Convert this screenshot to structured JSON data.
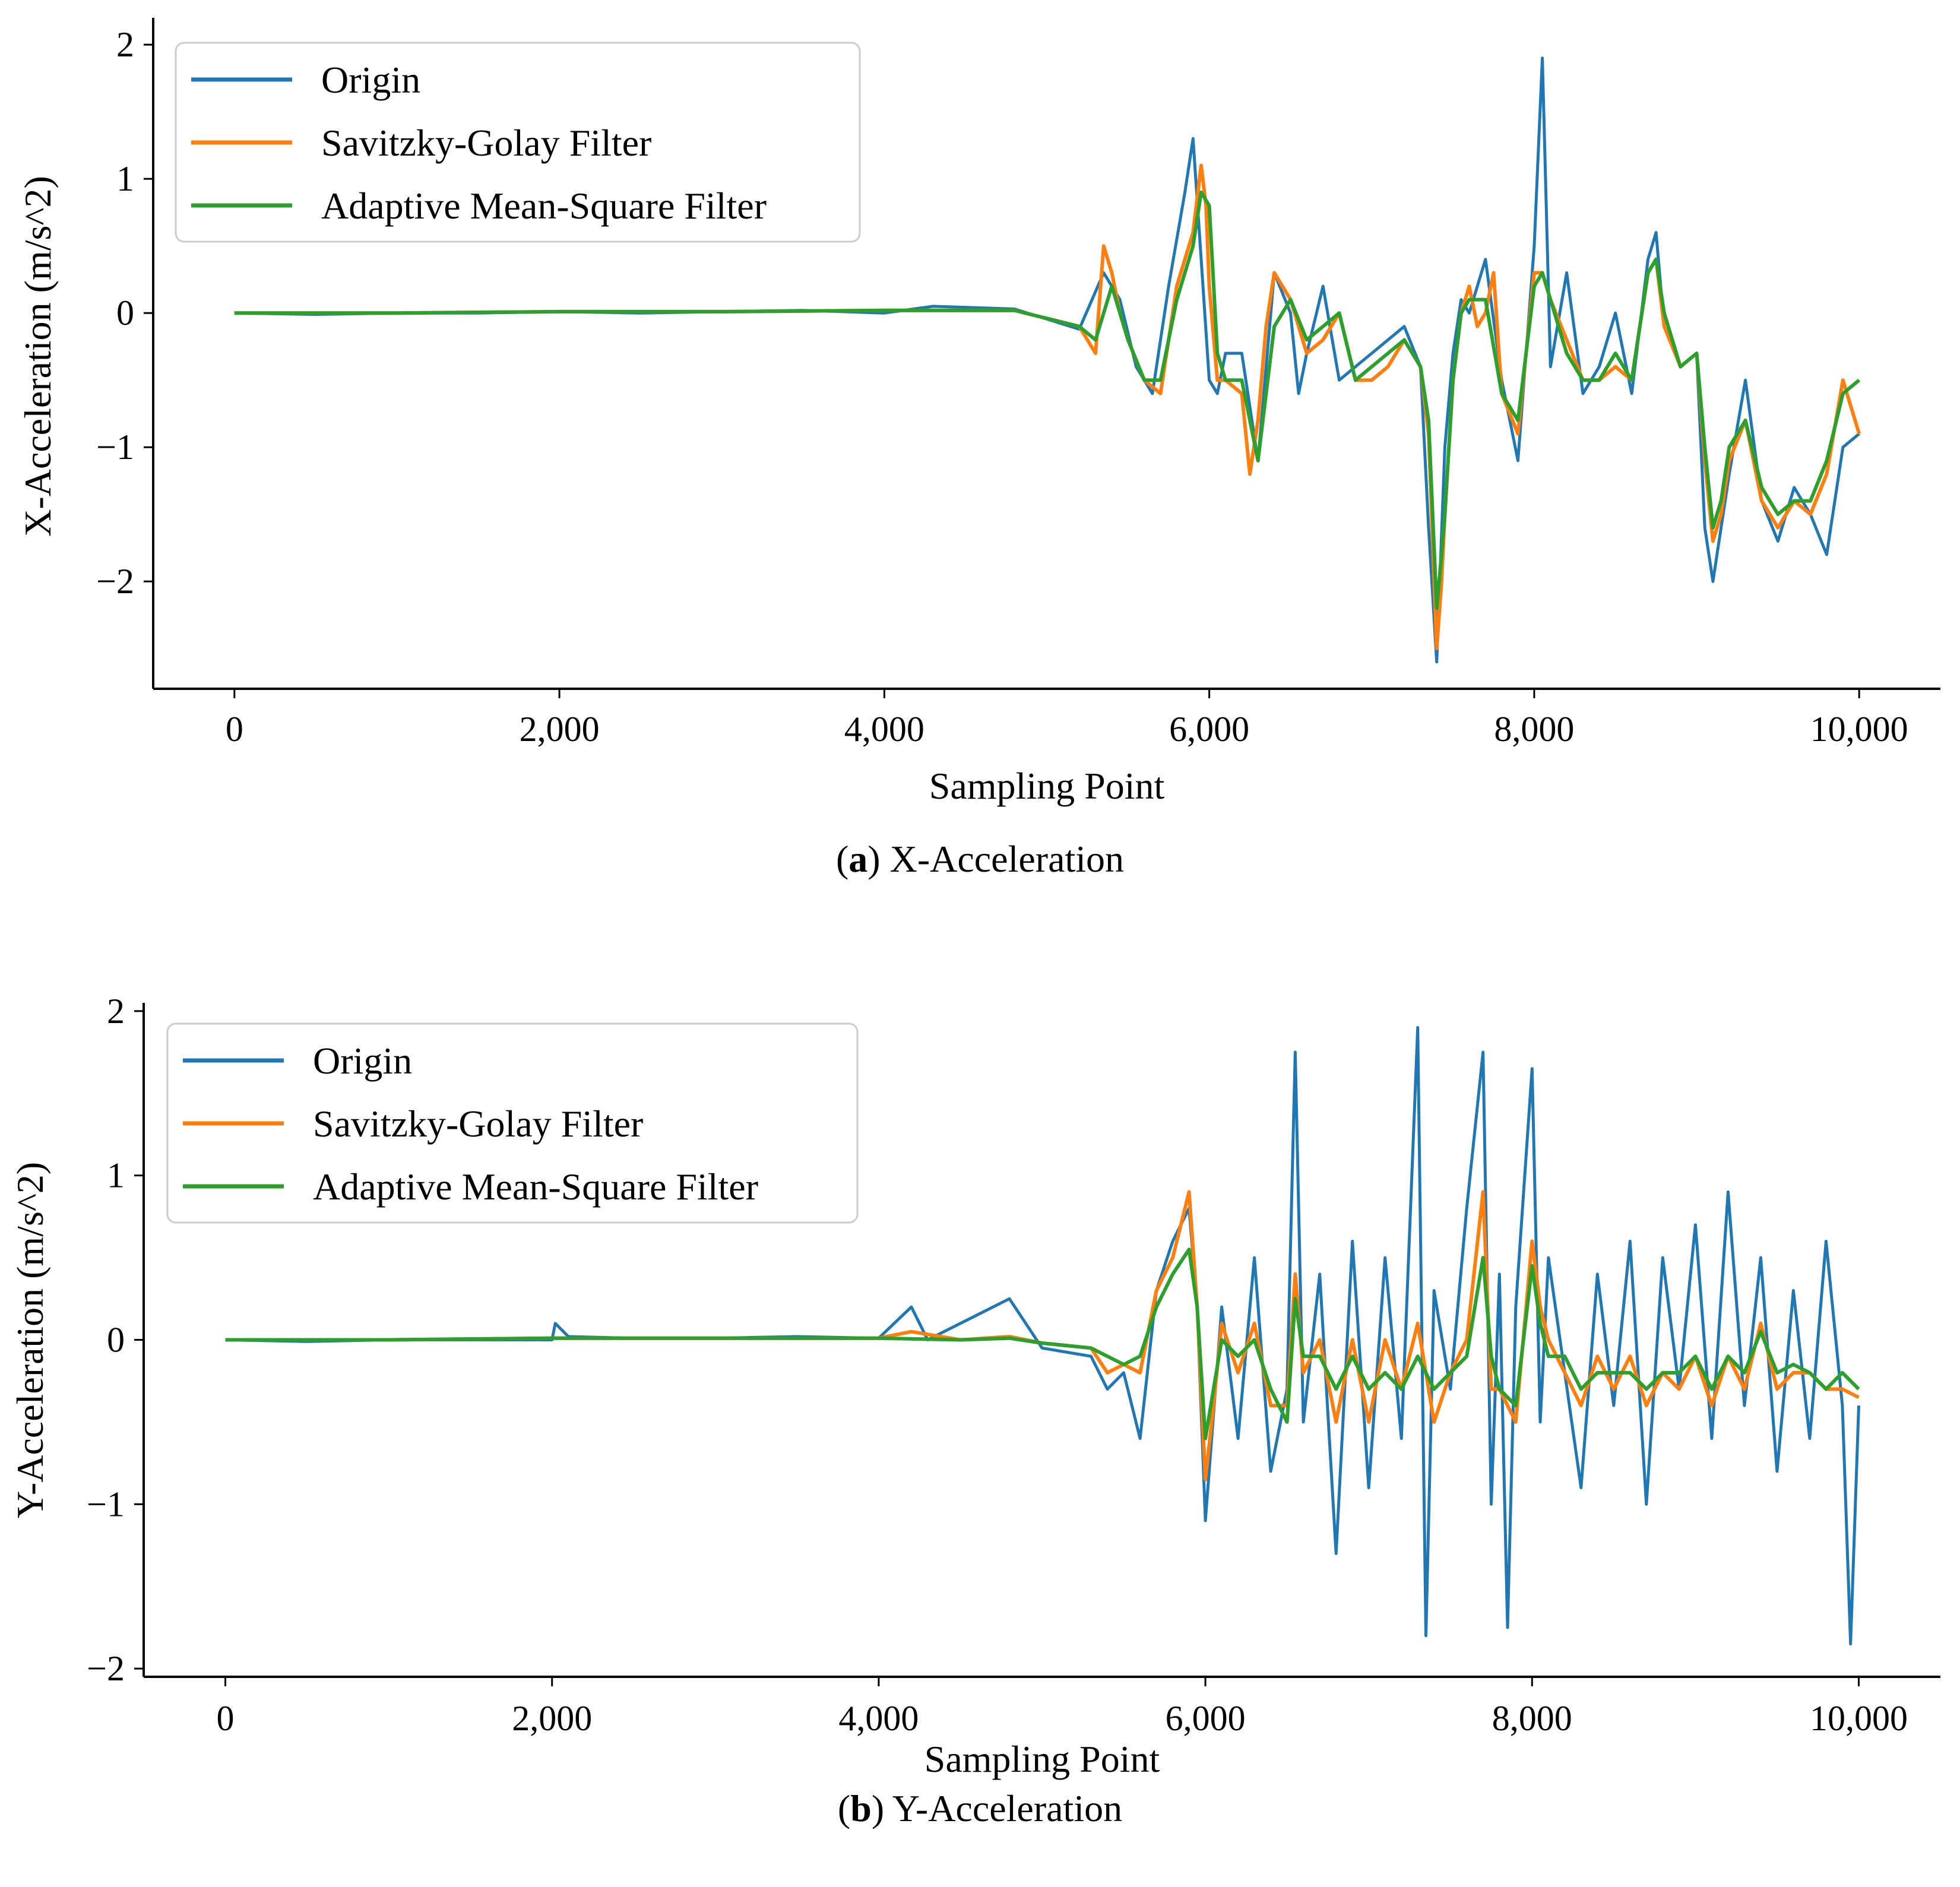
{
  "chart_data": [
    {
      "type": "line",
      "panel": "a",
      "caption_letter": "a",
      "caption_text": "X-Acceleration",
      "xlabel": "Sampling Point",
      "ylabel": "X-Acceleration (m/s^2)",
      "xlim": [
        -500,
        10500
      ],
      "ylim": [
        -2.8,
        2.2
      ],
      "xticks": [
        0,
        2000,
        4000,
        6000,
        8000,
        10000
      ],
      "xtick_labels": [
        "0",
        "2,000",
        "4,000",
        "6,000",
        "8,000",
        "10,000"
      ],
      "yticks": [
        2,
        1,
        0,
        -1,
        -2
      ],
      "ytick_labels": [
        "2",
        "1",
        "0",
        "−1",
        "−2"
      ],
      "legend": [
        "Origin",
        "Savitzky-Golay Filter",
        "Adaptive Mean-Square Filter"
      ],
      "legend_position": "top-left",
      "series": [
        {
          "name": "Origin",
          "color": "#1f77b4",
          "x": [
            0,
            500,
            1000,
            1500,
            2000,
            2500,
            3000,
            3500,
            4000,
            4300,
            4800,
            5200,
            5350,
            5450,
            5550,
            5650,
            5750,
            5850,
            5900,
            5950,
            6000,
            6050,
            6100,
            6200,
            6300,
            6350,
            6400,
            6500,
            6550,
            6600,
            6700,
            6800,
            6900,
            7000,
            7100,
            7200,
            7300,
            7350,
            7400,
            7450,
            7500,
            7550,
            7600,
            7700,
            7800,
            7900,
            8000,
            8050,
            8100,
            8200,
            8300,
            8400,
            8500,
            8600,
            8700,
            8750,
            8800,
            8900,
            9000,
            9050,
            9100,
            9150,
            9200,
            9300,
            9400,
            9500,
            9600,
            9700,
            9800,
            9900,
            10000
          ],
          "y": [
            0,
            -0.01,
            0,
            0,
            0.01,
            0,
            0.01,
            0.02,
            0,
            0.05,
            0.03,
            -0.12,
            0.3,
            0.1,
            -0.4,
            -0.6,
            0.2,
            0.9,
            1.3,
            0.4,
            -0.5,
            -0.6,
            -0.3,
            -0.3,
            -1.1,
            -0.4,
            0.3,
            0.0,
            -0.6,
            -0.3,
            0.2,
            -0.5,
            -0.4,
            -0.3,
            -0.2,
            -0.1,
            -0.4,
            -1.6,
            -2.6,
            -1.0,
            -0.3,
            0.1,
            0.0,
            0.4,
            -0.5,
            -1.1,
            0.5,
            1.9,
            -0.4,
            0.3,
            -0.6,
            -0.4,
            0.0,
            -0.6,
            0.4,
            0.6,
            -0.1,
            -0.4,
            -0.3,
            -1.6,
            -2.0,
            -1.6,
            -1.2,
            -0.5,
            -1.4,
            -1.7,
            -1.3,
            -1.5,
            -1.8,
            -1.0,
            -0.9
          ]
        },
        {
          "name": "Savitzky-Golay Filter",
          "color": "#ff7f0e",
          "x": [
            0,
            1000,
            2000,
            3000,
            4000,
            4800,
            5200,
            5300,
            5350,
            5400,
            5450,
            5500,
            5600,
            5700,
            5800,
            5900,
            5950,
            5980,
            6000,
            6050,
            6100,
            6200,
            6250,
            6300,
            6350,
            6400,
            6450,
            6500,
            6600,
            6700,
            6800,
            6900,
            7000,
            7100,
            7200,
            7300,
            7350,
            7400,
            7430,
            7450,
            7500,
            7550,
            7600,
            7650,
            7700,
            7750,
            7800,
            7900,
            8000,
            8050,
            8100,
            8200,
            8300,
            8400,
            8500,
            8600,
            8700,
            8750,
            8800,
            8900,
            9000,
            9050,
            9100,
            9150,
            9200,
            9300,
            9400,
            9500,
            9600,
            9700,
            9800,
            9900,
            10000
          ],
          "y": [
            0,
            0,
            0.01,
            0.01,
            0.02,
            0.02,
            -0.1,
            -0.3,
            0.5,
            0.3,
            0.0,
            -0.2,
            -0.5,
            -0.6,
            0.2,
            0.6,
            1.1,
            0.8,
            0.2,
            -0.5,
            -0.5,
            -0.6,
            -1.2,
            -0.8,
            -0.1,
            0.3,
            0.2,
            0.1,
            -0.3,
            -0.2,
            0.0,
            -0.5,
            -0.5,
            -0.4,
            -0.2,
            -0.4,
            -0.9,
            -2.5,
            -2.0,
            -1.5,
            -0.5,
            0.0,
            0.2,
            -0.1,
            0.0,
            0.3,
            -0.6,
            -0.9,
            0.3,
            0.3,
            0.1,
            -0.2,
            -0.5,
            -0.5,
            -0.4,
            -0.5,
            0.3,
            0.4,
            -0.1,
            -0.4,
            -0.3,
            -1.1,
            -1.7,
            -1.5,
            -1.1,
            -0.8,
            -1.4,
            -1.6,
            -1.4,
            -1.5,
            -1.2,
            -0.5,
            -0.9
          ]
        },
        {
          "name": "Adaptive Mean-Square Filter",
          "color": "#2ca02c",
          "x": [
            0,
            1000,
            2000,
            3000,
            4000,
            4800,
            5200,
            5300,
            5400,
            5500,
            5600,
            5700,
            5800,
            5900,
            5950,
            6000,
            6050,
            6100,
            6200,
            6300,
            6400,
            6500,
            6600,
            6700,
            6800,
            6900,
            7000,
            7100,
            7200,
            7300,
            7350,
            7400,
            7430,
            7450,
            7500,
            7550,
            7600,
            7700,
            7800,
            7900,
            8000,
            8050,
            8100,
            8200,
            8300,
            8400,
            8500,
            8600,
            8700,
            8750,
            8800,
            8900,
            9000,
            9050,
            9100,
            9150,
            9200,
            9300,
            9400,
            9500,
            9600,
            9700,
            9800,
            9900,
            10000
          ],
          "y": [
            0,
            0,
            0.01,
            0.01,
            0.02,
            0.02,
            -0.1,
            -0.2,
            0.2,
            -0.2,
            -0.5,
            -0.5,
            0.1,
            0.5,
            0.9,
            0.8,
            -0.3,
            -0.5,
            -0.5,
            -1.1,
            -0.1,
            0.1,
            -0.2,
            -0.1,
            0.0,
            -0.5,
            -0.4,
            -0.3,
            -0.2,
            -0.4,
            -0.8,
            -2.2,
            -1.8,
            -1.5,
            -0.5,
            0.0,
            0.1,
            0.1,
            -0.6,
            -0.8,
            0.2,
            0.3,
            0.1,
            -0.3,
            -0.5,
            -0.5,
            -0.3,
            -0.5,
            0.3,
            0.4,
            0.0,
            -0.4,
            -0.3,
            -1.0,
            -1.6,
            -1.4,
            -1.0,
            -0.8,
            -1.3,
            -1.5,
            -1.4,
            -1.4,
            -1.1,
            -0.6,
            -0.5
          ]
        }
      ]
    },
    {
      "type": "line",
      "panel": "b",
      "caption_letter": "b",
      "caption_text": "Y-Acceleration",
      "xlabel": "Sampling Point",
      "ylabel": "Y-Acceleration (m/s^2)",
      "xlim": [
        -500,
        10500
      ],
      "ylim": [
        -2.05,
        2.05
      ],
      "xticks": [
        0,
        2000,
        4000,
        6000,
        8000,
        10000
      ],
      "xtick_labels": [
        "0",
        "2,000",
        "4,000",
        "6,000",
        "8,000",
        "10,000"
      ],
      "yticks": [
        2,
        1,
        0,
        -1,
        -2
      ],
      "ytick_labels": [
        "2",
        "1",
        "0",
        "−1",
        "−2"
      ],
      "legend": [
        "Origin",
        "Savitzky-Golay Filter",
        "Adaptive Mean-Square Filter"
      ],
      "legend_position": "top-left",
      "series": [
        {
          "name": "Origin",
          "color": "#1f77b4",
          "x": [
            0,
            500,
            1000,
            1500,
            2000,
            2020,
            2100,
            2500,
            3000,
            3500,
            4000,
            4200,
            4300,
            4800,
            5000,
            5300,
            5400,
            5500,
            5600,
            5700,
            5800,
            5900,
            5950,
            6000,
            6100,
            6200,
            6300,
            6400,
            6500,
            6550,
            6600,
            6700,
            6800,
            6900,
            7000,
            7100,
            7200,
            7300,
            7350,
            7400,
            7500,
            7600,
            7700,
            7750,
            7800,
            7850,
            7900,
            8000,
            8050,
            8100,
            8200,
            8300,
            8400,
            8500,
            8600,
            8700,
            8800,
            8900,
            9000,
            9100,
            9200,
            9300,
            9400,
            9500,
            9600,
            9700,
            9800,
            9900,
            9950,
            10000
          ],
          "y": [
            0,
            -0.01,
            0,
            0,
            0,
            0.1,
            0.02,
            0.01,
            0.01,
            0.02,
            0.01,
            0.2,
            0.0,
            0.25,
            -0.05,
            -0.1,
            -0.3,
            -0.2,
            -0.6,
            0.3,
            0.6,
            0.8,
            0.2,
            -1.1,
            0.2,
            -0.6,
            0.5,
            -0.8,
            -0.3,
            1.75,
            -0.5,
            0.4,
            -1.3,
            0.6,
            -0.9,
            0.5,
            -0.6,
            1.9,
            -1.8,
            0.3,
            -0.3,
            0.8,
            1.75,
            -1.0,
            0.4,
            -1.75,
            0.2,
            1.65,
            -0.5,
            0.5,
            -0.2,
            -0.9,
            0.4,
            -0.4,
            0.6,
            -1.0,
            0.5,
            -0.3,
            0.7,
            -0.6,
            0.9,
            -0.4,
            0.5,
            -0.8,
            0.3,
            -0.6,
            0.6,
            -0.4,
            -1.85,
            -0.4
          ]
        },
        {
          "name": "Savitzky-Golay Filter",
          "color": "#ff7f0e",
          "x": [
            0,
            1000,
            2000,
            3000,
            4000,
            4200,
            4500,
            4800,
            5000,
            5300,
            5400,
            5500,
            5600,
            5700,
            5800,
            5900,
            5950,
            6000,
            6050,
            6100,
            6200,
            6300,
            6400,
            6500,
            6550,
            6600,
            6700,
            6800,
            6900,
            7000,
            7100,
            7200,
            7300,
            7400,
            7500,
            7600,
            7700,
            7750,
            7800,
            7900,
            8000,
            8050,
            8100,
            8200,
            8300,
            8400,
            8500,
            8600,
            8700,
            8800,
            8900,
            9000,
            9100,
            9200,
            9300,
            9400,
            9500,
            9600,
            9700,
            9800,
            9900,
            10000
          ],
          "y": [
            0,
            0,
            0.01,
            0.01,
            0.01,
            0.05,
            0.0,
            0.02,
            -0.02,
            -0.05,
            -0.2,
            -0.15,
            -0.2,
            0.3,
            0.5,
            0.9,
            0.2,
            -0.85,
            -0.4,
            0.1,
            -0.2,
            0.1,
            -0.4,
            -0.4,
            0.4,
            -0.2,
            0.0,
            -0.5,
            0.0,
            -0.5,
            0.0,
            -0.3,
            0.1,
            -0.5,
            -0.2,
            0.0,
            0.9,
            -0.3,
            -0.3,
            -0.5,
            0.6,
            0.2,
            0.0,
            -0.2,
            -0.4,
            -0.1,
            -0.3,
            -0.1,
            -0.4,
            -0.2,
            -0.3,
            -0.1,
            -0.4,
            -0.1,
            -0.3,
            0.1,
            -0.3,
            -0.2,
            -0.2,
            -0.3,
            -0.3,
            -0.35
          ]
        },
        {
          "name": "Adaptive Mean-Square Filter",
          "color": "#2ca02c",
          "x": [
            0,
            1000,
            2000,
            3000,
            4000,
            4500,
            4800,
            5000,
            5300,
            5400,
            5500,
            5600,
            5700,
            5800,
            5900,
            5950,
            6000,
            6050,
            6100,
            6200,
            6300,
            6400,
            6500,
            6550,
            6600,
            6700,
            6800,
            6900,
            7000,
            7100,
            7200,
            7300,
            7400,
            7500,
            7600,
            7700,
            7750,
            7800,
            7900,
            8000,
            8050,
            8100,
            8200,
            8300,
            8400,
            8500,
            8600,
            8700,
            8800,
            8900,
            9000,
            9100,
            9200,
            9300,
            9400,
            9500,
            9600,
            9700,
            9800,
            9900,
            10000
          ],
          "y": [
            0,
            0,
            0.01,
            0.01,
            0.01,
            0.0,
            0.01,
            -0.02,
            -0.05,
            -0.1,
            -0.15,
            -0.1,
            0.2,
            0.4,
            0.55,
            0.2,
            -0.6,
            -0.3,
            0.0,
            -0.1,
            0.0,
            -0.3,
            -0.5,
            0.25,
            -0.1,
            -0.1,
            -0.3,
            -0.1,
            -0.3,
            -0.2,
            -0.3,
            -0.1,
            -0.3,
            -0.2,
            -0.1,
            0.5,
            -0.1,
            -0.3,
            -0.4,
            0.45,
            0.1,
            -0.1,
            -0.1,
            -0.3,
            -0.2,
            -0.2,
            -0.2,
            -0.3,
            -0.2,
            -0.2,
            -0.1,
            -0.3,
            -0.1,
            -0.2,
            0.05,
            -0.2,
            -0.15,
            -0.2,
            -0.3,
            -0.2,
            -0.3
          ]
        }
      ]
    }
  ]
}
